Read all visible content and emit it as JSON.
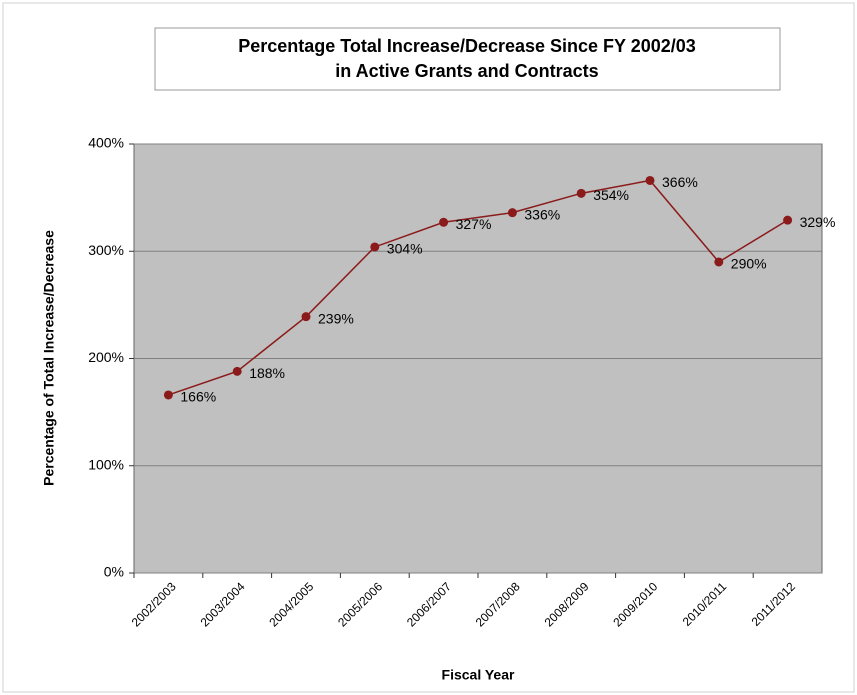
{
  "chart_data": {
    "type": "line",
    "title": [
      "Percentage Total Increase/Decrease Since FY 2002/03",
      "in Active Grants and Contracts"
    ],
    "x_label": "Fiscal Year",
    "y_label": "Percentage of Total Increase/Decrease",
    "categories": [
      "2002/2003",
      "2003/2004",
      "2004/2005",
      "2005/2006",
      "2006/2007",
      "2007/2008",
      "2008/2009",
      "2009/2010",
      "2010/2011",
      "2011/2012"
    ],
    "values": [
      166,
      188,
      239,
      304,
      327,
      336,
      354,
      366,
      290,
      329
    ],
    "value_labels": [
      "166%",
      "188%",
      "239%",
      "304%",
      "327%",
      "336%",
      "354%",
      "366%",
      "290%",
      "329%"
    ],
    "color": "#8b1a1a",
    "ylim": [
      0,
      400
    ],
    "yticks": [
      {
        "value": 0,
        "label": "0%"
      },
      {
        "value": 100,
        "label": "100%"
      },
      {
        "value": 200,
        "label": "200%"
      },
      {
        "value": 300,
        "label": "300%"
      },
      {
        "value": 400,
        "label": "400%"
      }
    ],
    "grid": true
  }
}
